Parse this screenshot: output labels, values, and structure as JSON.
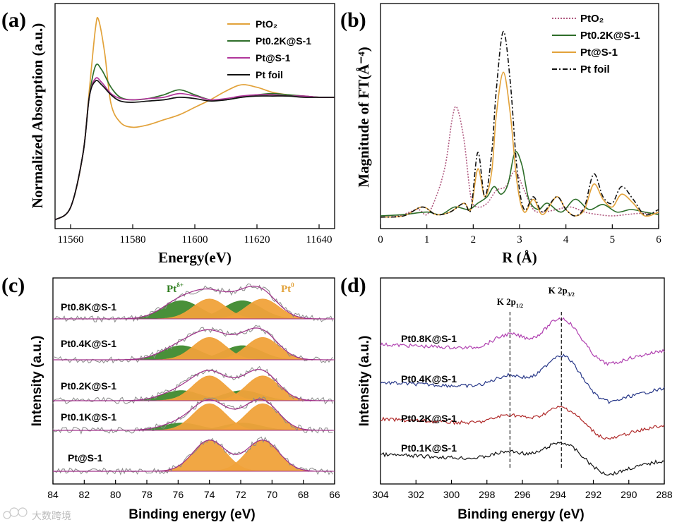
{
  "panels": {
    "a": {
      "label": "(a)"
    },
    "b": {
      "label": "(b)"
    },
    "c": {
      "label": "(c)"
    },
    "d": {
      "label": "(d)"
    }
  },
  "watermark": "大数跨境",
  "chart_data": [
    {
      "id": "a",
      "type": "line",
      "xlabel": "Energy(eV)",
      "ylabel": "Normalized Absorption (a.u.)",
      "xlim": [
        11555,
        11645
      ],
      "xticks": [
        "11560",
        "11580",
        "11600",
        "11620",
        "11640"
      ],
      "legend_position": "top-right",
      "series": [
        {
          "name": "PtO₂",
          "color": "#e2a23a",
          "x": [
            11555,
            11560,
            11564,
            11566,
            11568,
            11569,
            11571,
            11573,
            11576,
            11580,
            11585,
            11590,
            11595,
            11600,
            11605,
            11610,
            11615,
            11620,
            11625,
            11630,
            11635,
            11640,
            11645
          ],
          "y": [
            0.02,
            0.12,
            0.55,
            1.05,
            1.55,
            1.62,
            1.35,
            0.95,
            0.8,
            0.76,
            0.78,
            0.82,
            0.86,
            0.92,
            0.98,
            1.05,
            1.1,
            1.08,
            1.04,
            1.02,
            1.01,
            1.0,
            1.0
          ]
        },
        {
          "name": "Pt0.2K@S-1",
          "color": "#2e6e2a",
          "x": [
            11555,
            11560,
            11564,
            11566,
            11568,
            11570,
            11573,
            11576,
            11580,
            11585,
            11590,
            11595,
            11600,
            11605,
            11610,
            11615,
            11620,
            11625,
            11630,
            11635,
            11640,
            11645
          ],
          "y": [
            0.02,
            0.12,
            0.55,
            1.0,
            1.25,
            1.22,
            1.08,
            1.0,
            0.98,
            0.99,
            1.02,
            1.06,
            1.02,
            0.98,
            0.98,
            1.0,
            1.02,
            1.03,
            1.02,
            1.01,
            1.0,
            1.0
          ]
        },
        {
          "name": "Pt@S-1",
          "color": "#b0359a",
          "x": [
            11555,
            11560,
            11564,
            11566,
            11568,
            11570,
            11573,
            11576,
            11580,
            11585,
            11590,
            11595,
            11600,
            11605,
            11610,
            11615,
            11620,
            11625,
            11630,
            11635,
            11640,
            11645
          ],
          "y": [
            0.02,
            0.12,
            0.55,
            1.0,
            1.15,
            1.12,
            1.03,
            0.99,
            0.98,
            0.99,
            1.0,
            1.03,
            1.01,
            0.98,
            0.99,
            1.01,
            1.02,
            1.02,
            1.01,
            1.01,
            1.0,
            1.0
          ]
        },
        {
          "name": "Pt foil",
          "color": "#111111",
          "x": [
            11555,
            11560,
            11564,
            11566,
            11568,
            11570,
            11573,
            11576,
            11580,
            11585,
            11590,
            11595,
            11600,
            11605,
            11610,
            11615,
            11620,
            11625,
            11630,
            11635,
            11640,
            11645
          ],
          "y": [
            0.02,
            0.12,
            0.55,
            1.0,
            1.13,
            1.1,
            1.02,
            0.97,
            0.96,
            0.97,
            0.98,
            1.0,
            0.99,
            0.97,
            0.98,
            1.0,
            1.01,
            1.01,
            1.01,
            1.0,
            1.0,
            1.0
          ]
        }
      ]
    },
    {
      "id": "b",
      "type": "line",
      "xlabel": "R (Å)",
      "ylabel": "Magnitude of FT(Å⁻⁴)",
      "xlim": [
        0,
        6
      ],
      "xticks": [
        "0",
        "1",
        "2",
        "3",
        "4",
        "5",
        "6"
      ],
      "legend_position": "top-right",
      "series": [
        {
          "name": "PtO₂",
          "color": "#b05a80",
          "dash": "dotted",
          "x": [
            0,
            0.4,
            0.8,
            1.0,
            1.2,
            1.4,
            1.55,
            1.65,
            1.8,
            1.95,
            2.1,
            2.3,
            2.5,
            2.7,
            2.9,
            3.1,
            3.3,
            3.5,
            3.8,
            4.1,
            4.4,
            4.7,
            5.0,
            5.3,
            5.6,
            6.0
          ],
          "y": [
            0.04,
            0.05,
            0.1,
            0.06,
            0.2,
            0.45,
            0.82,
            0.9,
            0.65,
            0.2,
            0.12,
            0.15,
            0.25,
            0.28,
            0.4,
            0.25,
            0.1,
            0.08,
            0.1,
            0.12,
            0.08,
            0.06,
            0.05,
            0.06,
            0.07,
            0.07
          ]
        },
        {
          "name": "Pt0.2K@S-1",
          "color": "#2e6e2a",
          "x": [
            0,
            0.5,
            1.0,
            1.3,
            1.6,
            1.9,
            2.1,
            2.3,
            2.45,
            2.6,
            2.75,
            2.9,
            3.05,
            3.2,
            3.4,
            3.6,
            3.9,
            4.2,
            4.5,
            4.8,
            5.1,
            5.4,
            5.7,
            6.0
          ],
          "y": [
            0.05,
            0.06,
            0.08,
            0.06,
            0.12,
            0.1,
            0.15,
            0.2,
            0.28,
            0.22,
            0.3,
            0.55,
            0.45,
            0.18,
            0.1,
            0.15,
            0.08,
            0.18,
            0.1,
            0.14,
            0.08,
            0.1,
            0.08,
            0.06
          ]
        },
        {
          "name": "Pt@S-1",
          "color": "#e2a23a",
          "x": [
            0,
            0.5,
            0.9,
            1.2,
            1.5,
            1.8,
            1.95,
            2.1,
            2.25,
            2.4,
            2.5,
            2.65,
            2.8,
            2.95,
            3.1,
            3.3,
            3.5,
            3.8,
            4.0,
            4.2,
            4.4,
            4.6,
            4.8,
            5.0,
            5.2,
            5.45,
            5.7,
            6.0
          ],
          "y": [
            0.04,
            0.05,
            0.12,
            0.06,
            0.08,
            0.15,
            0.1,
            0.42,
            0.2,
            0.4,
            0.85,
            1.18,
            0.85,
            0.3,
            0.08,
            0.18,
            0.06,
            0.2,
            0.1,
            0.05,
            0.1,
            0.3,
            0.18,
            0.12,
            0.22,
            0.15,
            0.05,
            0.08
          ]
        },
        {
          "name": "Pt foil",
          "color": "#111111",
          "dash": "dashdot",
          "x": [
            0,
            0.5,
            0.9,
            1.2,
            1.5,
            1.8,
            1.95,
            2.1,
            2.25,
            2.4,
            2.5,
            2.65,
            2.8,
            2.95,
            3.1,
            3.3,
            3.5,
            3.8,
            4.0,
            4.2,
            4.4,
            4.6,
            4.8,
            5.0,
            5.2,
            5.45,
            5.7,
            6.0
          ],
          "y": [
            0.04,
            0.05,
            0.12,
            0.06,
            0.08,
            0.15,
            0.1,
            0.55,
            0.2,
            0.55,
            1.05,
            1.5,
            1.1,
            0.4,
            0.1,
            0.2,
            0.08,
            0.2,
            0.1,
            0.05,
            0.12,
            0.38,
            0.2,
            0.15,
            0.28,
            0.18,
            0.06,
            0.1
          ]
        }
      ]
    },
    {
      "id": "c",
      "type": "line",
      "xlabel": "Binding energy (eV)",
      "ylabel": "Intensity (a.u.)",
      "xlim": [
        84,
        66
      ],
      "x_reversed": true,
      "xticks": [
        "84",
        "82",
        "80",
        "78",
        "76",
        "74",
        "72",
        "70",
        "68",
        "66"
      ],
      "annotations": [
        {
          "text": "Pt",
          "sup": "δ+",
          "color": "#2e7d1e"
        },
        {
          "text": "Pt",
          "sup": "0",
          "color": "#e2a23a"
        }
      ],
      "series": [
        {
          "name": "Pt0.8K@S-1",
          "delta_frac": 0.45
        },
        {
          "name": "Pt0.4K@S-1",
          "delta_frac": 0.35
        },
        {
          "name": "Pt0.2K@S-1",
          "delta_frac": 0.25
        },
        {
          "name": "Pt0.1K@S-1",
          "delta_frac": 0.18
        },
        {
          "name": "Pt@S-1",
          "delta_frac": 0.0
        }
      ],
      "peaks": {
        "pt0": [
          74.0,
          70.6
        ],
        "ptdelta": [
          75.8,
          71.9
        ]
      }
    },
    {
      "id": "d",
      "type": "line",
      "xlabel": "Binding energy (eV)",
      "ylabel": "Intensity (a.u.)",
      "xlim": [
        304,
        288
      ],
      "x_reversed": true,
      "xticks": [
        "304",
        "302",
        "300",
        "298",
        "296",
        "294",
        "292",
        "290",
        "288"
      ],
      "annotations": [
        {
          "text": "K 2p",
          "sub": "1/2",
          "x": 296.7
        },
        {
          "text": "K 2p",
          "sub": "3/2",
          "x": 293.8
        }
      ],
      "series": [
        {
          "name": "Pt0.8K@S-1",
          "color": "#b040b0"
        },
        {
          "name": "Pt0.4K@S-1",
          "color": "#2a3a8a"
        },
        {
          "name": "Pt0.2K@S-1",
          "color": "#b02a2a"
        },
        {
          "name": "Pt0.1K@S-1",
          "color": "#111111"
        }
      ]
    }
  ]
}
